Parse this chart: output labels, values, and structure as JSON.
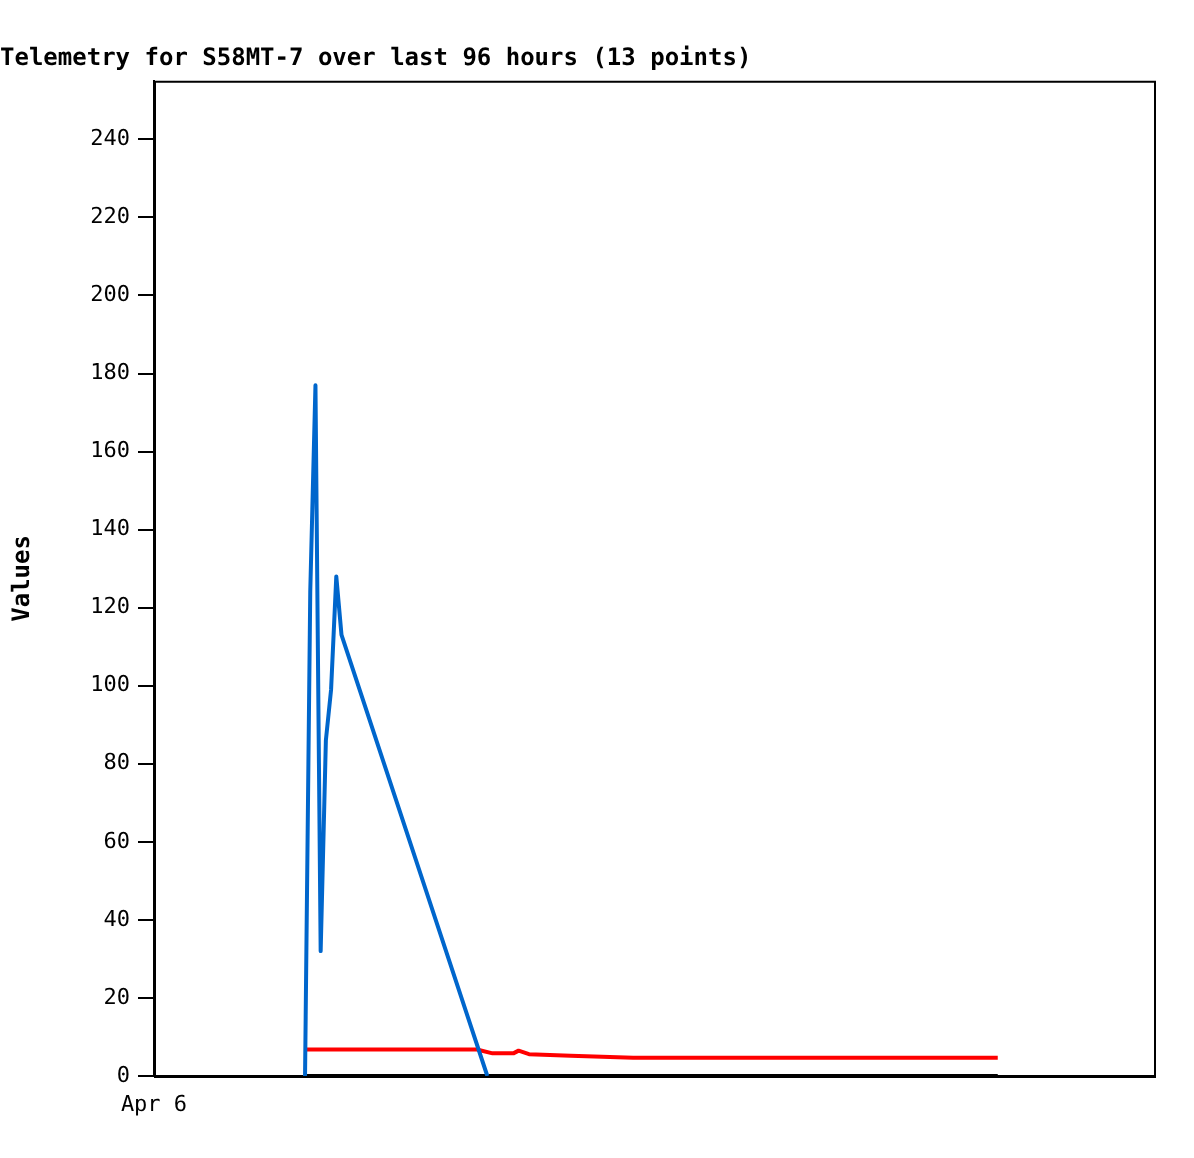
{
  "chart_data": {
    "type": "line",
    "title": "Telemetry for S58MT-7 over last 96 hours (13 points)",
    "ylabel": "Values",
    "categories": [
      "Apr 6",
      null,
      null,
      null,
      null,
      null,
      null,
      null,
      null,
      null,
      null,
      null,
      null,
      null,
      null,
      null,
      null,
      null,
      null,
      null,
      null,
      null,
      null,
      null,
      null,
      null,
      null,
      null,
      null,
      null,
      null,
      null,
      null,
      null,
      null,
      null,
      null,
      null,
      null,
      null,
      null,
      null,
      null,
      null,
      null,
      null,
      null,
      null,
      null,
      null,
      null,
      null,
      null,
      null,
      null,
      null,
      null,
      null,
      null,
      null,
      null,
      null,
      null,
      null,
      null,
      null,
      null,
      null,
      null,
      null,
      null,
      null,
      null,
      null,
      null,
      null,
      null,
      null,
      null,
      null,
      null,
      null,
      null,
      null,
      null,
      null,
      null,
      null,
      null,
      null,
      null,
      null,
      null,
      null,
      null,
      null,
      null,
      null,
      null,
      null,
      null,
      null,
      null,
      null,
      null,
      null,
      null,
      null,
      null,
      null,
      null,
      null,
      null,
      null,
      null,
      null,
      null,
      null,
      null,
      null,
      null,
      null,
      null,
      null,
      null,
      null,
      null,
      null,
      null,
      null,
      null,
      null,
      null,
      null,
      null,
      null,
      null,
      null,
      null,
      null,
      null,
      null,
      null,
      null,
      null,
      null,
      null,
      null,
      null,
      null,
      null,
      null,
      null,
      null,
      null,
      null,
      null,
      null,
      null,
      null,
      null,
      null,
      null,
      null,
      null,
      null,
      null,
      null,
      null,
      null,
      null,
      null,
      null,
      null,
      null,
      null,
      null,
      null,
      null,
      null,
      null,
      null,
      null,
      null,
      null,
      null,
      null,
      null,
      null,
      null,
      null,
      null,
      null
    ],
    "ylim": [
      0,
      255
    ],
    "yticks": [
      0,
      20,
      40,
      60,
      80,
      100,
      120,
      140,
      160,
      180,
      200,
      220,
      240
    ],
    "grid": false,
    "legend": false,
    "marker": "none",
    "line_style": "solid",
    "series": [
      {
        "color": "#0066cc",
        "values": [
          null,
          null,
          null,
          null,
          null,
          null,
          null,
          null,
          null,
          null,
          null,
          null,
          null,
          null,
          null,
          null,
          null,
          null,
          null,
          null,
          null,
          null,
          null,
          null,
          null,
          null,
          null,
          null,
          null,
          0,
          124,
          177,
          32,
          86,
          99,
          128,
          113,
          null,
          null,
          null,
          null,
          null,
          null,
          null,
          null,
          null,
          null,
          null,
          null,
          null,
          null,
          null,
          null,
          null,
          null,
          null,
          null,
          null,
          null,
          null,
          null,
          null,
          null,
          null,
          0,
          null,
          null,
          null,
          null,
          null,
          null,
          null,
          null,
          null,
          null,
          null,
          null,
          null,
          null,
          null,
          null,
          null,
          null,
          null,
          null,
          null,
          null,
          null,
          null,
          null,
          null,
          null,
          null,
          null,
          null,
          null,
          null,
          null,
          null,
          null,
          null,
          null,
          null,
          null,
          null,
          null,
          null,
          null,
          null,
          null,
          null,
          null,
          null,
          null,
          null,
          null,
          null,
          null,
          null,
          null,
          null,
          null,
          null,
          null,
          null,
          null,
          null,
          null,
          null,
          null,
          null,
          null,
          null,
          null,
          null,
          null,
          null,
          null,
          null,
          null,
          null,
          null,
          null,
          null,
          null,
          null,
          null,
          null,
          null,
          null,
          null,
          null,
          null,
          null,
          null,
          null,
          null,
          null,
          null,
          null,
          null,
          null,
          null,
          null,
          null,
          null,
          null,
          null,
          null,
          null,
          null,
          null,
          null,
          null,
          null,
          null,
          null,
          null,
          null,
          null,
          null,
          null,
          null,
          null,
          null,
          null,
          null,
          null,
          null,
          null,
          null,
          null,
          null
        ]
      },
      {
        "color": "#ff0000",
        "values": [
          null,
          null,
          null,
          null,
          null,
          null,
          null,
          null,
          null,
          null,
          null,
          null,
          null,
          null,
          null,
          null,
          null,
          null,
          null,
          null,
          null,
          null,
          null,
          null,
          null,
          null,
          null,
          null,
          null,
          6.8,
          null,
          null,
          null,
          null,
          null,
          null,
          null,
          null,
          null,
          null,
          null,
          null,
          null,
          null,
          null,
          null,
          null,
          null,
          null,
          null,
          null,
          null,
          null,
          null,
          null,
          null,
          null,
          null,
          null,
          null,
          null,
          null,
          6.8,
          null,
          null,
          5.8,
          null,
          null,
          null,
          5.8,
          6.5,
          null,
          5.6,
          null,
          null,
          null,
          null,
          null,
          null,
          null,
          5.2,
          null,
          null,
          null,
          null,
          null,
          null,
          null,
          null,
          null,
          null,
          null,
          4.7,
          null,
          null,
          null,
          null,
          null,
          null,
          null,
          null,
          null,
          null,
          null,
          null,
          null,
          null,
          null,
          null,
          null,
          null,
          null,
          null,
          null,
          null,
          null,
          null,
          null,
          null,
          null,
          null,
          null,
          null,
          null,
          null,
          null,
          null,
          null,
          null,
          null,
          null,
          null,
          null,
          null,
          null,
          null,
          null,
          null,
          null,
          null,
          null,
          null,
          null,
          null,
          null,
          null,
          null,
          null,
          null,
          null,
          null,
          null,
          null,
          null,
          null,
          null,
          null,
          null,
          null,
          null,
          null,
          null,
          4.7,
          null,
          null,
          null,
          null,
          null,
          null,
          null,
          null,
          null,
          null,
          null,
          null,
          null,
          null,
          null,
          null,
          null,
          null,
          null,
          null,
          null,
          null,
          null,
          null,
          null,
          null,
          null,
          null,
          null,
          null
        ]
      },
      {
        "color": "#000000",
        "values": [
          null,
          null,
          null,
          null,
          null,
          null,
          null,
          null,
          null,
          null,
          null,
          null,
          null,
          null,
          null,
          null,
          null,
          null,
          null,
          null,
          null,
          null,
          null,
          null,
          null,
          null,
          null,
          null,
          null,
          0,
          null,
          null,
          null,
          null,
          null,
          null,
          null,
          null,
          null,
          null,
          null,
          null,
          null,
          null,
          null,
          null,
          null,
          null,
          null,
          null,
          null,
          null,
          null,
          null,
          null,
          null,
          null,
          null,
          null,
          null,
          null,
          null,
          null,
          null,
          null,
          null,
          null,
          null,
          null,
          null,
          null,
          null,
          null,
          null,
          null,
          null,
          null,
          null,
          null,
          null,
          null,
          null,
          null,
          null,
          null,
          null,
          null,
          null,
          null,
          null,
          null,
          null,
          null,
          null,
          null,
          null,
          null,
          null,
          null,
          null,
          null,
          null,
          null,
          null,
          null,
          null,
          null,
          null,
          null,
          null,
          null,
          null,
          null,
          null,
          null,
          null,
          null,
          null,
          null,
          null,
          null,
          null,
          null,
          null,
          null,
          null,
          null,
          null,
          null,
          null,
          null,
          null,
          null,
          null,
          null,
          null,
          null,
          null,
          null,
          null,
          null,
          null,
          null,
          null,
          null,
          null,
          null,
          null,
          null,
          null,
          null,
          null,
          null,
          null,
          null,
          null,
          null,
          null,
          null,
          null,
          null,
          null,
          0,
          null,
          null,
          null,
          null,
          null,
          null,
          null,
          null,
          null,
          null,
          null,
          null,
          null,
          null,
          null,
          null,
          null,
          null,
          null,
          null,
          null,
          null,
          null,
          null,
          null,
          null,
          null,
          null,
          null,
          null
        ]
      }
    ]
  }
}
